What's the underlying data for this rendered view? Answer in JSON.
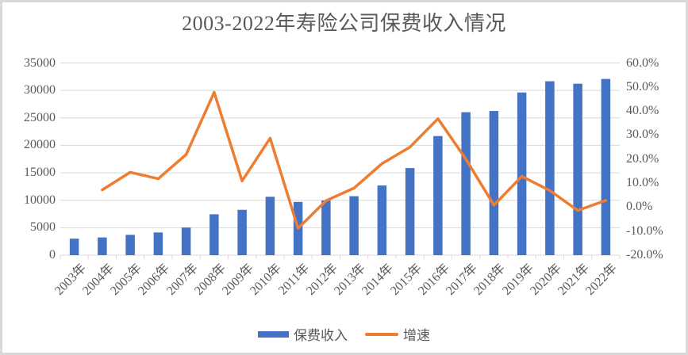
{
  "chart_data": {
    "type": "combo-bar-line",
    "title": "2003-2022年寿险公司保费收入情况",
    "categories": [
      "2003年",
      "2004年",
      "2005年",
      "2006年",
      "2007年",
      "2008年",
      "2009年",
      "2010年",
      "2011年",
      "2012年",
      "2013年",
      "2014年",
      "2015年",
      "2016年",
      "2017年",
      "2018年",
      "2019年",
      "2020年",
      "2021年",
      "2022年"
    ],
    "series": [
      {
        "name": "保费收入",
        "type": "bar",
        "axis": "left",
        "color": "#4472C4",
        "values": [
          3011,
          3228,
          3697,
          4132,
          5038,
          7447,
          8261,
          10632,
          9700,
          9958,
          10741,
          12690,
          15859,
          21692,
          26040,
          26261,
          29628,
          31674,
          31224,
          32091
        ]
      },
      {
        "name": "增速",
        "type": "line",
        "axis": "right",
        "color": "#ED7D31",
        "unit": "%",
        "values": [
          null,
          7.2,
          14.5,
          11.8,
          21.9,
          47.8,
          10.9,
          28.7,
          -8.8,
          2.7,
          7.9,
          18.1,
          25.0,
          36.8,
          20.0,
          0.8,
          12.8,
          6.9,
          -1.4,
          2.8
        ]
      }
    ],
    "left_axis": {
      "min": 0,
      "max": 35000,
      "step": 5000,
      "tick_labels": [
        "0",
        "5000",
        "10000",
        "15000",
        "20000",
        "25000",
        "30000",
        "35000"
      ]
    },
    "right_axis": {
      "min": -20,
      "max": 60,
      "step": 10,
      "tick_labels": [
        "-20.0%",
        "-10.0%",
        "0.0%",
        "10.0%",
        "20.0%",
        "30.0%",
        "40.0%",
        "50.0%",
        "60.0%"
      ]
    },
    "gridlines": "horizontal",
    "legend_position": "bottom",
    "colors": {
      "bar": "#4472C4",
      "line": "#ED7D31",
      "gridline": "#D9D9D9",
      "axis_tick": "#D9D9D9",
      "axis_text": "#595959",
      "title_text": "#595959",
      "border": "#D9D9D9",
      "background": "#FFFFFF"
    }
  }
}
